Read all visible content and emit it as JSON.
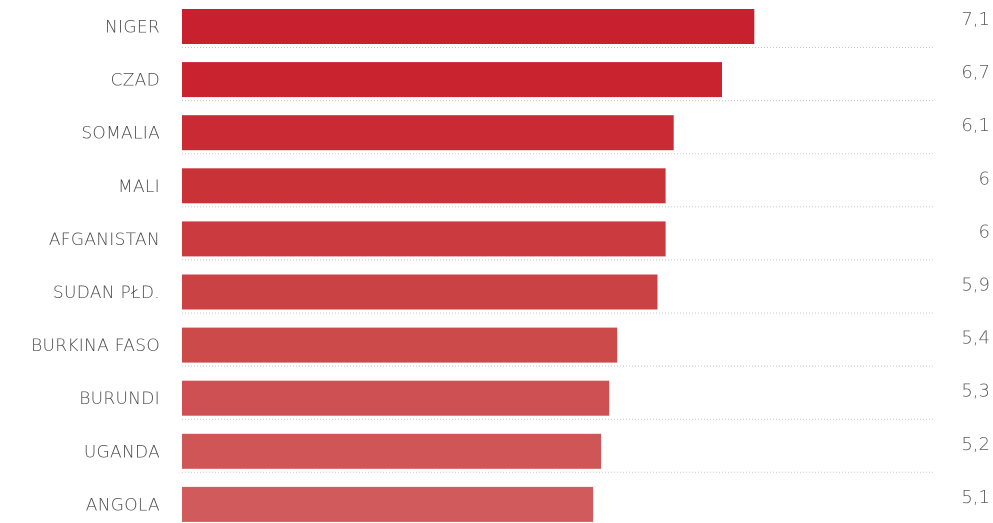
{
  "chart_data": {
    "type": "bar",
    "orientation": "horizontal",
    "categories": [
      "NIGER",
      "CZAD",
      "SOMALIA",
      "MALI",
      "AFGANISTAN",
      "SUDAN PŁD.",
      "BURKINA FASO",
      "BURUNDI",
      "UGANDA",
      "ANGOLA"
    ],
    "values": [
      7.1,
      6.7,
      6.1,
      6.0,
      6.0,
      5.9,
      5.4,
      5.3,
      5.2,
      5.1
    ],
    "value_labels": [
      "7,1",
      "6,7",
      "6,1",
      "6",
      "6",
      "5,9",
      "5,4",
      "5,3",
      "5,2",
      "5,1"
    ],
    "bar_colors": [
      "#c8202f",
      "#c9232f",
      "#c92a34",
      "#c93338",
      "#ca3a3f",
      "#cb4245",
      "#cd4a4b",
      "#ce5052",
      "#d05557",
      "#d15a5c"
    ],
    "grid": false,
    "legend": "none"
  }
}
